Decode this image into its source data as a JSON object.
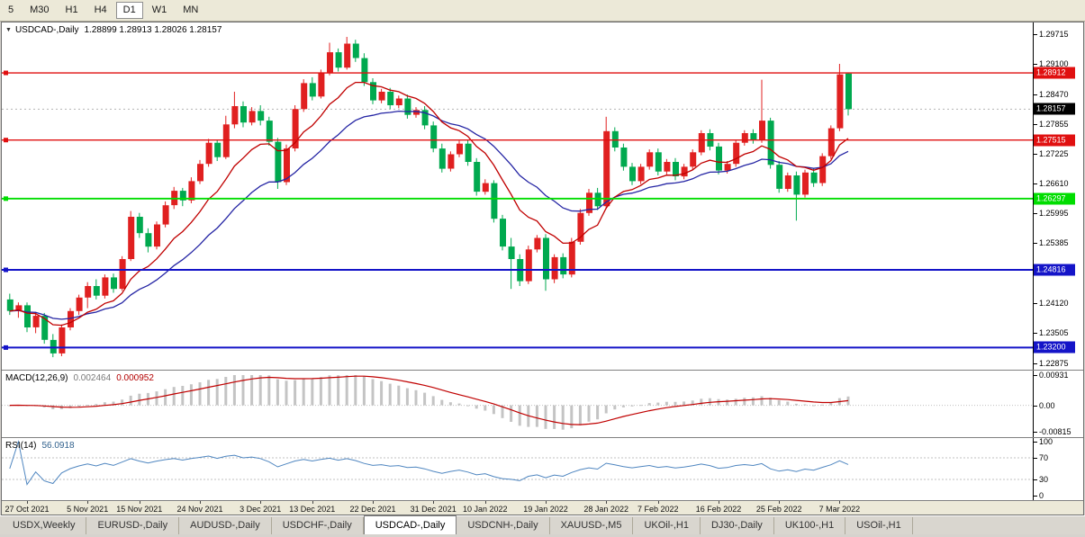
{
  "toolbar": {
    "buttons": [
      {
        "label": "5",
        "active": false
      },
      {
        "label": "M30",
        "active": false
      },
      {
        "label": "H1",
        "active": false
      },
      {
        "label": "H4",
        "active": false
      },
      {
        "label": "D1",
        "active": true
      },
      {
        "label": "W1",
        "active": false
      },
      {
        "label": "MN",
        "active": false
      }
    ]
  },
  "icons": {
    "chart_menu": "▼"
  },
  "chart": {
    "title_symbol": "USDCAD-,Daily",
    "title_ohlc": "1.28899 1.28913 1.28026 1.28157",
    "colors": {
      "bull": "#e02020",
      "bear": "#00a94f",
      "ma_fast": "#c00000",
      "ma_slow": "#2525a4",
      "hist": "#c4c4c4",
      "signal": "#c00000",
      "rsi": "#4f86c0",
      "bid_line": "#b4b4b4",
      "level_gray": "#c0c0c0"
    },
    "price_axis": {
      "min": 1.2274,
      "max": 1.2996,
      "ticks": [
        "1.29715",
        "1.29100",
        "1.28470",
        "1.27855",
        "1.27225",
        "1.26610",
        "1.25995",
        "1.25385",
        "1.24120",
        "1.23505",
        "1.22875"
      ]
    },
    "current_price": {
      "label": "1.28157",
      "value": 1.28157,
      "bg": "#000000"
    },
    "hlines": [
      {
        "label": "1.28912",
        "value": 1.28912,
        "color": "#e01010",
        "width": 1.4
      },
      {
        "label": "1.27515",
        "value": 1.27515,
        "color": "#e01010",
        "width": 1.4
      },
      {
        "label": "1.26297",
        "value": 1.26297,
        "color": "#00dd00",
        "width": 1.8
      },
      {
        "label": "1.24816",
        "value": 1.24816,
        "color": "#1414c8",
        "width": 2
      },
      {
        "label": "1.23200",
        "value": 1.232,
        "color": "#1414c8",
        "width": 2
      }
    ],
    "ma_fast_period": 10,
    "ma_slow_period": 21,
    "candles": [
      [
        1.242,
        1.2432,
        1.2388,
        1.2396
      ],
      [
        1.2396,
        1.2414,
        1.2382,
        1.2408
      ],
      [
        1.2408,
        1.2414,
        1.2352,
        1.2362
      ],
      [
        1.2362,
        1.2394,
        1.235,
        1.2386
      ],
      [
        1.2386,
        1.2392,
        1.2328,
        1.2336
      ],
      [
        1.2336,
        1.2348,
        1.23,
        1.2308
      ],
      [
        1.2308,
        1.2368,
        1.2302,
        1.2362
      ],
      [
        1.2362,
        1.2402,
        1.2356,
        1.2396
      ],
      [
        1.2396,
        1.243,
        1.2388,
        1.2424
      ],
      [
        1.2424,
        1.2456,
        1.2402,
        1.2448
      ],
      [
        1.2448,
        1.2462,
        1.242,
        1.2428
      ],
      [
        1.2428,
        1.2472,
        1.2422,
        1.2466
      ],
      [
        1.2466,
        1.2474,
        1.2434,
        1.2442
      ],
      [
        1.2442,
        1.251,
        1.2438,
        1.2504
      ],
      [
        1.2504,
        1.2604,
        1.25,
        1.2592
      ],
      [
        1.2592,
        1.26,
        1.2548,
        1.2558
      ],
      [
        1.2558,
        1.2568,
        1.2518,
        1.253
      ],
      [
        1.253,
        1.2582,
        1.2524,
        1.2576
      ],
      [
        1.2576,
        1.2624,
        1.257,
        1.2616
      ],
      [
        1.2616,
        1.2654,
        1.2608,
        1.2646
      ],
      [
        1.2646,
        1.2652,
        1.2614,
        1.2626
      ],
      [
        1.2626,
        1.2674,
        1.262,
        1.2666
      ],
      [
        1.2666,
        1.271,
        1.266,
        1.2702
      ],
      [
        1.2702,
        1.2754,
        1.2696,
        1.2746
      ],
      [
        1.2746,
        1.2752,
        1.2708,
        1.2716
      ],
      [
        1.2716,
        1.2802,
        1.2712,
        1.2784
      ],
      [
        1.2784,
        1.2852,
        1.2776,
        1.2822
      ],
      [
        1.2822,
        1.2832,
        1.2778,
        1.2788
      ],
      [
        1.2788,
        1.282,
        1.2782,
        1.2812
      ],
      [
        1.2812,
        1.2824,
        1.2782,
        1.2792
      ],
      [
        1.2792,
        1.28,
        1.274,
        1.2748
      ],
      [
        1.2748,
        1.2756,
        1.265,
        1.2664
      ],
      [
        1.2664,
        1.2742,
        1.2658,
        1.2734
      ],
      [
        1.2734,
        1.2824,
        1.2728,
        1.2816
      ],
      [
        1.2816,
        1.2878,
        1.281,
        1.287
      ],
      [
        1.287,
        1.2882,
        1.2834,
        1.2842
      ],
      [
        1.2842,
        1.2898,
        1.2838,
        1.2892
      ],
      [
        1.2892,
        1.2954,
        1.2886,
        1.2934
      ],
      [
        1.2934,
        1.2942,
        1.2894,
        1.2902
      ],
      [
        1.2902,
        1.2966,
        1.2898,
        1.2952
      ],
      [
        1.2952,
        1.296,
        1.2914,
        1.2922
      ],
      [
        1.2922,
        1.2932,
        1.2864,
        1.2872
      ],
      [
        1.2872,
        1.288,
        1.2826,
        1.2834
      ],
      [
        1.2834,
        1.2858,
        1.2828,
        1.2852
      ],
      [
        1.2852,
        1.286,
        1.2816,
        1.2824
      ],
      [
        1.2824,
        1.2844,
        1.2818,
        1.2838
      ],
      [
        1.2838,
        1.2846,
        1.2796,
        1.2804
      ],
      [
        1.2804,
        1.282,
        1.2798,
        1.2814
      ],
      [
        1.2814,
        1.2822,
        1.2774,
        1.2782
      ],
      [
        1.2782,
        1.279,
        1.2726,
        1.2734
      ],
      [
        1.2734,
        1.2744,
        1.2684,
        1.2692
      ],
      [
        1.2692,
        1.2728,
        1.2686,
        1.2722
      ],
      [
        1.2722,
        1.275,
        1.2716,
        1.2744
      ],
      [
        1.2744,
        1.2752,
        1.2698,
        1.2706
      ],
      [
        1.2706,
        1.2714,
        1.2636,
        1.2644
      ],
      [
        1.2644,
        1.267,
        1.2638,
        1.2662
      ],
      [
        1.2662,
        1.2668,
        1.258,
        1.2588
      ],
      [
        1.2588,
        1.2596,
        1.2522,
        1.253
      ],
      [
        1.253,
        1.2548,
        1.2442,
        1.2504
      ],
      [
        1.2504,
        1.2514,
        1.2448,
        1.2458
      ],
      [
        1.2458,
        1.2532,
        1.2452,
        1.2524
      ],
      [
        1.2524,
        1.2554,
        1.2518,
        1.2548
      ],
      [
        1.2548,
        1.2556,
        1.2438,
        1.2462
      ],
      [
        1.2462,
        1.2514,
        1.2454,
        1.2508
      ],
      [
        1.2508,
        1.2516,
        1.2464,
        1.2472
      ],
      [
        1.2472,
        1.2548,
        1.2466,
        1.254
      ],
      [
        1.254,
        1.2608,
        1.2534,
        1.26
      ],
      [
        1.26,
        1.265,
        1.2594,
        1.2642
      ],
      [
        1.2642,
        1.2652,
        1.2606,
        1.2614
      ],
      [
        1.2614,
        1.28,
        1.2608,
        1.277
      ],
      [
        1.277,
        1.2778,
        1.2728,
        1.2736
      ],
      [
        1.2736,
        1.2744,
        1.2688,
        1.2696
      ],
      [
        1.2696,
        1.2704,
        1.2658,
        1.2666
      ],
      [
        1.2666,
        1.2702,
        1.266,
        1.2696
      ],
      [
        1.2696,
        1.2732,
        1.269,
        1.2726
      ],
      [
        1.2726,
        1.2734,
        1.2678,
        1.2686
      ],
      [
        1.2686,
        1.2712,
        1.268,
        1.2706
      ],
      [
        1.2706,
        1.2714,
        1.2668,
        1.2676
      ],
      [
        1.2676,
        1.2702,
        1.267,
        1.2696
      ],
      [
        1.2696,
        1.2732,
        1.269,
        1.2726
      ],
      [
        1.2726,
        1.2772,
        1.272,
        1.2766
      ],
      [
        1.2766,
        1.2774,
        1.273,
        1.2738
      ],
      [
        1.2738,
        1.2746,
        1.268,
        1.2688
      ],
      [
        1.2688,
        1.2708,
        1.2682,
        1.2702
      ],
      [
        1.2702,
        1.2752,
        1.2696,
        1.2746
      ],
      [
        1.2746,
        1.2772,
        1.274,
        1.2766
      ],
      [
        1.2766,
        1.2774,
        1.2744,
        1.2752
      ],
      [
        1.2752,
        1.2877,
        1.2746,
        1.2792
      ],
      [
        1.2792,
        1.2798,
        1.2692,
        1.27
      ],
      [
        1.27,
        1.2708,
        1.2642,
        1.265
      ],
      [
        1.265,
        1.2684,
        1.2644,
        1.2678
      ],
      [
        1.2678,
        1.2686,
        1.2584,
        1.2638
      ],
      [
        1.2638,
        1.269,
        1.2632,
        1.2684
      ],
      [
        1.2684,
        1.2692,
        1.2654,
        1.2662
      ],
      [
        1.2662,
        1.2724,
        1.2656,
        1.2718
      ],
      [
        1.2718,
        1.2782,
        1.2712,
        1.2776
      ],
      [
        1.2776,
        1.291,
        1.277,
        1.2888
      ],
      [
        1.28899,
        1.28913,
        1.28026,
        1.28157
      ]
    ],
    "dates": [
      {
        "label": "27 Oct 2021",
        "bar": 2
      },
      {
        "label": "5 Nov 2021",
        "bar": 9
      },
      {
        "label": "15 Nov 2021",
        "bar": 15
      },
      {
        "label": "24 Nov 2021",
        "bar": 22
      },
      {
        "label": "3 Dec 2021",
        "bar": 29
      },
      {
        "label": "13 Dec 2021",
        "bar": 35
      },
      {
        "label": "22 Dec 2021",
        "bar": 42
      },
      {
        "label": "31 Dec 2021",
        "bar": 49
      },
      {
        "label": "10 Jan 2022",
        "bar": 55
      },
      {
        "label": "19 Jan 2022",
        "bar": 62
      },
      {
        "label": "28 Jan 2022",
        "bar": 69
      },
      {
        "label": "7 Feb 2022",
        "bar": 75
      },
      {
        "label": "16 Feb 2022",
        "bar": 82
      },
      {
        "label": "25 Feb 2022",
        "bar": 89
      },
      {
        "label": "7 Mar 2022",
        "bar": 96
      }
    ],
    "macd": {
      "label": "MACD(12,26,9)",
      "value1": "0.002464",
      "value2": "0.000952",
      "fast": 12,
      "slow": 26,
      "signal": 9,
      "min": -0.00815,
      "max": 0.00931,
      "axis": [
        {
          "label": "0.00931",
          "value": 0.00931
        },
        {
          "label": "0.00",
          "value": 0
        },
        {
          "label": "-0.00815",
          "value": -0.00815
        }
      ]
    },
    "rsi": {
      "label": "RSI(14)",
      "value": "56.0918",
      "period": 14,
      "min": 0,
      "max": 100,
      "levels": [
        70,
        30
      ],
      "axis": [
        {
          "label": "100",
          "value": 100
        },
        {
          "label": "70",
          "value": 70
        },
        {
          "label": "30",
          "value": 30
        },
        {
          "label": "0",
          "value": 0
        }
      ]
    }
  },
  "tabs": [
    {
      "label": "USDX,Weekly",
      "active": false
    },
    {
      "label": "EURUSD-,Daily",
      "active": false
    },
    {
      "label": "AUDUSD-,Daily",
      "active": false
    },
    {
      "label": "USDCHF-,Daily",
      "active": false
    },
    {
      "label": "USDCAD-,Daily",
      "active": true
    },
    {
      "label": "USDCNH-,Daily",
      "active": false
    },
    {
      "label": "XAUUSD-,M5",
      "active": false
    },
    {
      "label": "UKOil-,H1",
      "active": false
    },
    {
      "label": "DJ30-,Daily",
      "active": false
    },
    {
      "label": "UK100-,H1",
      "active": false
    },
    {
      "label": "USOil-,H1",
      "active": false
    }
  ]
}
